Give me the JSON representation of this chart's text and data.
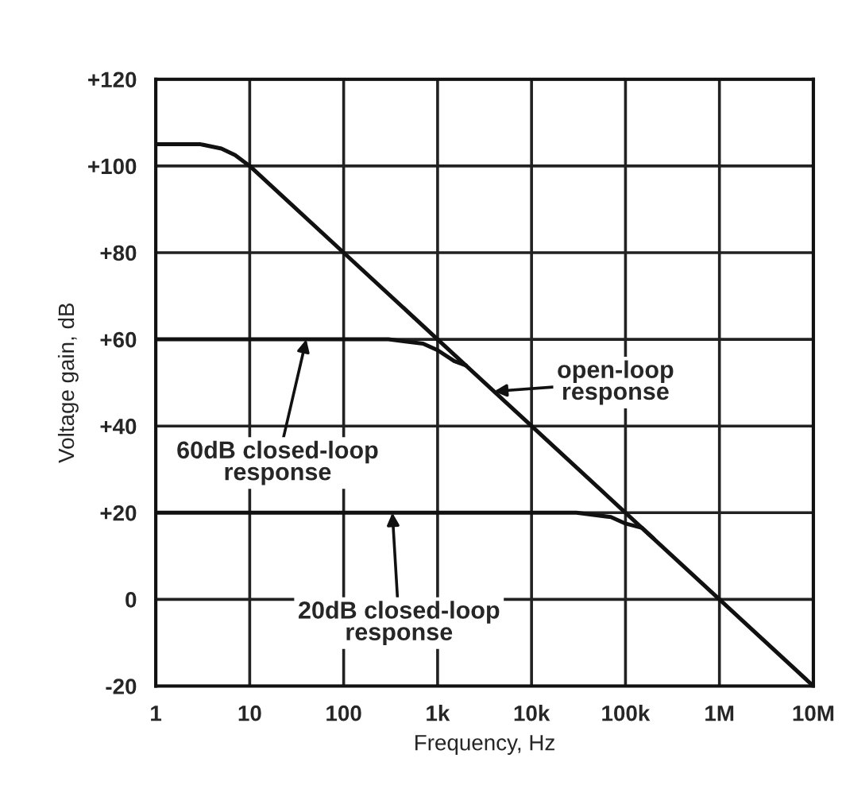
{
  "chart_data": {
    "type": "line",
    "xlabel": "Frequency, Hz",
    "ylabel": "Voltage gain, dB",
    "log": "x",
    "x": [
      1,
      3,
      5,
      7,
      10,
      100,
      1000,
      10000,
      100000,
      1000000,
      10000000
    ],
    "series": [
      {
        "color": "#111111",
        "values": [
          105,
          105,
          104,
          102.5,
          100,
          80,
          60,
          40,
          20,
          0,
          -20
        ]
      },
      {
        "color": "#111111",
        "x": [
          1,
          300,
          700,
          1000,
          1500,
          2000
        ],
        "values": [
          60,
          60,
          59,
          57.5,
          55,
          54
        ]
      },
      {
        "color": "#111111",
        "x": [
          1,
          30000,
          70000,
          100000,
          150000,
          200000
        ],
        "values": [
          20,
          20,
          19,
          17.5,
          16.5,
          14
        ]
      }
    ],
    "xlim": [
      1,
      10000000
    ],
    "xticks": [
      1,
      10,
      100,
      {
        "value": 1000,
        "label": "1k"
      },
      {
        "value": 10000,
        "label": "10k"
      },
      {
        "value": 100000,
        "label": "100k"
      },
      {
        "value": 1000000,
        "label": "1M"
      },
      {
        "value": 10000000,
        "label": "10M"
      }
    ],
    "ylim": [
      -20,
      120
    ],
    "yticks": [
      {
        "value": 120,
        "label": "+120"
      },
      {
        "value": 100,
        "label": "+100"
      },
      {
        "value": 80,
        "label": "+80"
      },
      {
        "value": 60,
        "label": "+60"
      },
      {
        "value": 40,
        "label": "+40"
      },
      {
        "value": 20,
        "label": "+20"
      },
      0,
      -20
    ],
    "grid": true,
    "marker": "none",
    "line_style": "solid",
    "annotations": [
      {
        "text": "open-loop\nresponse",
        "x": 4000,
        "y": 48
      },
      {
        "text": "60dB closed-loop\nresponse",
        "x": 40,
        "y": 60
      },
      {
        "text": "20dB closed-loop\nresponse",
        "x": 330,
        "y": 20
      }
    ]
  }
}
